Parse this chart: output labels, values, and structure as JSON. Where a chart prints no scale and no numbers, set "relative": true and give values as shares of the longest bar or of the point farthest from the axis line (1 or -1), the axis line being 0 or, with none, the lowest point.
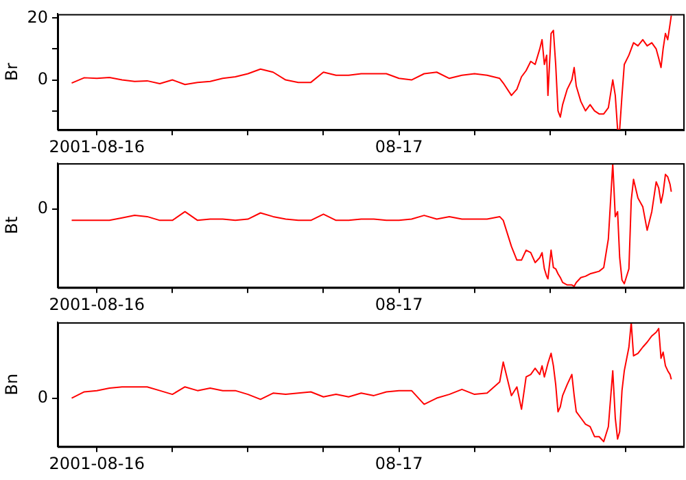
{
  "chart_data": [
    {
      "type": "line",
      "ylabel": "Br",
      "color": "#ff0000",
      "grid": false,
      "legend": false,
      "marker": "none",
      "xlim": [
        "2001-08-15T20:53",
        "2001-08-17T22:35"
      ],
      "xticks": [
        {
          "value": "2001-08-16",
          "label": "2001-08-16"
        },
        {
          "value": "2001-08-16T06:00",
          "label": null
        },
        {
          "value": "2001-08-16T12:00",
          "label": null
        },
        {
          "value": "2001-08-16T18:00",
          "label": null
        },
        {
          "value": "2001-08-17",
          "label": "08-17"
        },
        {
          "value": "2001-08-17T06:00",
          "label": null
        },
        {
          "value": "2001-08-17T12:00",
          "label": null
        },
        {
          "value": "2001-08-17T18:00",
          "label": null
        }
      ],
      "ylim": [
        -16.1,
        21.3
      ],
      "yticks": [
        {
          "value": -10,
          "label": null
        },
        0,
        {
          "value": 10,
          "label": null
        },
        20
      ],
      "x": [
        "2001-08-15T22:00",
        "2001-08-15T23:00",
        "2001-08-16T00:00",
        "2001-08-16T01:00",
        "2001-08-16T02:00",
        "2001-08-16T03:00",
        "2001-08-16T04:00",
        "2001-08-16T05:00",
        "2001-08-16T06:00",
        "2001-08-16T07:00",
        "2001-08-16T08:00",
        "2001-08-16T09:00",
        "2001-08-16T10:00",
        "2001-08-16T11:00",
        "2001-08-16T12:00",
        "2001-08-16T13:00",
        "2001-08-16T14:00",
        "2001-08-16T15:00",
        "2001-08-16T16:00",
        "2001-08-16T17:00",
        "2001-08-16T18:00",
        "2001-08-16T19:00",
        "2001-08-16T20:00",
        "2001-08-16T21:00",
        "2001-08-16T22:00",
        "2001-08-16T23:00",
        "2001-08-17T00:00",
        "2001-08-17T01:00",
        "2001-08-17T02:00",
        "2001-08-17T03:00",
        "2001-08-17T04:00",
        "2001-08-17T05:00",
        "2001-08-17T06:00",
        "2001-08-17T07:00",
        "2001-08-17T08:00",
        "2001-08-17T08:17",
        "2001-08-17T08:56",
        "2001-08-17T09:22",
        "2001-08-17T09:44",
        "2001-08-17T10:06",
        "2001-08-17T10:28",
        "2001-08-17T10:49",
        "2001-08-17T11:11",
        "2001-08-17T11:22",
        "2001-08-17T11:33",
        "2001-08-17T11:44",
        "2001-08-17T11:50",
        "2001-08-17T12:05",
        "2001-08-17T12:16",
        "2001-08-17T12:27",
        "2001-08-17T12:38",
        "2001-08-17T12:49",
        "2001-08-17T13:00",
        "2001-08-17T13:22",
        "2001-08-17T13:44",
        "2001-08-17T13:55",
        "2001-08-17T14:05",
        "2001-08-17T14:27",
        "2001-08-17T14:49",
        "2001-08-17T15:11",
        "2001-08-17T15:32",
        "2001-08-17T15:54",
        "2001-08-17T16:16",
        "2001-08-17T16:38",
        "2001-08-17T16:59",
        "2001-08-17T17:11",
        "2001-08-17T17:22",
        "2001-08-17T17:32",
        "2001-08-17T17:43",
        "2001-08-17T17:54",
        "2001-08-17T18:16",
        "2001-08-17T18:27",
        "2001-08-17T18:38",
        "2001-08-17T18:59",
        "2001-08-17T19:22",
        "2001-08-17T19:43",
        "2001-08-17T20:05",
        "2001-08-17T20:26",
        "2001-08-17T20:38",
        "2001-08-17T20:49",
        "2001-08-17T20:59",
        "2001-08-17T21:10",
        "2001-08-17T21:21",
        "2001-08-17T21:32",
        "2001-08-17T21:38"
      ],
      "values": [
        -1,
        0.7,
        0.5,
        0.8,
        0,
        -0.5,
        -0.3,
        -1.2,
        0,
        -1.5,
        -0.8,
        -0.5,
        0.5,
        1,
        2,
        3.5,
        2.5,
        0,
        -0.8,
        -0.8,
        2.5,
        1.5,
        1.5,
        2,
        2,
        2,
        0.5,
        0,
        2,
        2.5,
        0.5,
        1.5,
        2,
        1.5,
        0.5,
        -1,
        -5,
        -3,
        1,
        3,
        6,
        5,
        10,
        13,
        5,
        8,
        -5,
        15,
        16,
        5,
        -10,
        -12,
        -8,
        -3,
        0,
        4,
        -2,
        -7,
        -10,
        -8,
        -10,
        -11,
        -11,
        -9,
        0,
        -5,
        -16,
        -16,
        -5,
        5,
        8,
        10,
        12,
        11,
        13,
        11,
        12,
        10,
        7,
        4,
        10,
        15,
        13,
        18,
        20.8
      ]
    },
    {
      "type": "line",
      "ylabel": "Bt",
      "color": "#ff0000",
      "grid": false,
      "legend": false,
      "marker": "none",
      "relative": true,
      "xlim": [
        "2001-08-15T20:53",
        "2001-08-17T22:35"
      ],
      "xticks": [
        {
          "value": "2001-08-16",
          "label": "2001-08-16"
        },
        {
          "value": "2001-08-16T06:00",
          "label": null
        },
        {
          "value": "2001-08-16T12:00",
          "label": null
        },
        {
          "value": "2001-08-16T18:00",
          "label": null
        },
        {
          "value": "2001-08-17",
          "label": "08-17"
        },
        {
          "value": "2001-08-17T06:00",
          "label": null
        },
        {
          "value": "2001-08-17T12:00",
          "label": null
        },
        {
          "value": "2001-08-17T18:00",
          "label": null
        }
      ],
      "annotations": [
        "0"
      ],
      "x": [
        "2001-08-15T22:00",
        "2001-08-15T23:00",
        "2001-08-16T00:00",
        "2001-08-16T01:00",
        "2001-08-16T02:00",
        "2001-08-16T03:00",
        "2001-08-16T04:00",
        "2001-08-16T05:00",
        "2001-08-16T06:00",
        "2001-08-16T07:00",
        "2001-08-16T08:00",
        "2001-08-16T09:00",
        "2001-08-16T10:00",
        "2001-08-16T11:00",
        "2001-08-16T12:00",
        "2001-08-16T13:00",
        "2001-08-16T14:00",
        "2001-08-16T15:00",
        "2001-08-16T16:00",
        "2001-08-16T17:00",
        "2001-08-16T18:00",
        "2001-08-16T19:00",
        "2001-08-16T20:00",
        "2001-08-16T21:00",
        "2001-08-16T22:00",
        "2001-08-16T23:00",
        "2001-08-17T00:00",
        "2001-08-17T01:00",
        "2001-08-17T02:00",
        "2001-08-17T03:00",
        "2001-08-17T04:00",
        "2001-08-17T05:00",
        "2001-08-17T06:00",
        "2001-08-17T07:00",
        "2001-08-17T08:00",
        "2001-08-17T08:17",
        "2001-08-17T08:56",
        "2001-08-17T09:22",
        "2001-08-17T09:44",
        "2001-08-17T10:06",
        "2001-08-17T10:28",
        "2001-08-17T10:49",
        "2001-08-17T11:11",
        "2001-08-17T11:22",
        "2001-08-17T11:33",
        "2001-08-17T11:44",
        "2001-08-17T11:50",
        "2001-08-17T12:05",
        "2001-08-17T12:16",
        "2001-08-17T12:27",
        "2001-08-17T12:38",
        "2001-08-17T12:49",
        "2001-08-17T13:00",
        "2001-08-17T13:22",
        "2001-08-17T13:44",
        "2001-08-17T13:55",
        "2001-08-17T14:05",
        "2001-08-17T14:27",
        "2001-08-17T14:49",
        "2001-08-17T15:11",
        "2001-08-17T15:32",
        "2001-08-17T15:54",
        "2001-08-17T16:16",
        "2001-08-17T16:38",
        "2001-08-17T16:59",
        "2001-08-17T17:11",
        "2001-08-17T17:22",
        "2001-08-17T17:32",
        "2001-08-17T17:43",
        "2001-08-17T17:54",
        "2001-08-17T18:16",
        "2001-08-17T18:27",
        "2001-08-17T18:38",
        "2001-08-17T18:59",
        "2001-08-17T19:22",
        "2001-08-17T19:43",
        "2001-08-17T20:05",
        "2001-08-17T20:26",
        "2001-08-17T20:38",
        "2001-08-17T20:49",
        "2001-08-17T20:59",
        "2001-08-17T21:10",
        "2001-08-17T21:21",
        "2001-08-17T21:32",
        "2001-08-17T21:38"
      ],
      "values": [
        0.54,
        0.54,
        0.54,
        0.54,
        0.56,
        0.58,
        0.57,
        0.54,
        0.54,
        0.61,
        0.54,
        0.55,
        0.55,
        0.54,
        0.55,
        0.6,
        0.57,
        0.55,
        0.54,
        0.54,
        0.59,
        0.54,
        0.54,
        0.55,
        0.55,
        0.54,
        0.54,
        0.55,
        0.58,
        0.55,
        0.57,
        0.55,
        0.55,
        0.55,
        0.57,
        0.54,
        0.33,
        0.22,
        0.22,
        0.3,
        0.28,
        0.2,
        0.24,
        0.28,
        0.15,
        0.09,
        0.07,
        0.3,
        0.16,
        0.15,
        0.11,
        0.08,
        0.04,
        0.02,
        0.02,
        0.01,
        0.04,
        0.08,
        0.09,
        0.11,
        0.12,
        0.13,
        0.16,
        0.39,
        1,
        0.57,
        0.61,
        0.24,
        0.06,
        0.03,
        0.15,
        0.7,
        0.87,
        0.72,
        0.65,
        0.46,
        0.61,
        0.85,
        0.8,
        0.68,
        0.76,
        0.91,
        0.89,
        0.83,
        0.77
      ]
    },
    {
      "type": "line",
      "ylabel": "Bn",
      "color": "#ff0000",
      "grid": false,
      "legend": false,
      "marker": "none",
      "relative": true,
      "xlim": [
        "2001-08-15T20:53",
        "2001-08-17T22:35"
      ],
      "xticks": [
        {
          "value": "2001-08-16",
          "label": "2001-08-16"
        },
        {
          "value": "2001-08-16T06:00",
          "label": null
        },
        {
          "value": "2001-08-16T12:00",
          "label": null
        },
        {
          "value": "2001-08-16T18:00",
          "label": null
        },
        {
          "value": "2001-08-17",
          "label": "08-17"
        },
        {
          "value": "2001-08-17T06:00",
          "label": null
        },
        {
          "value": "2001-08-17T12:00",
          "label": null
        },
        {
          "value": "2001-08-17T18:00",
          "label": null
        }
      ],
      "annotations": [
        "0"
      ],
      "x": [
        "2001-08-15T22:00",
        "2001-08-15T23:00",
        "2001-08-16T00:00",
        "2001-08-16T01:00",
        "2001-08-16T02:00",
        "2001-08-16T03:00",
        "2001-08-16T04:00",
        "2001-08-16T05:00",
        "2001-08-16T06:00",
        "2001-08-16T07:00",
        "2001-08-16T08:00",
        "2001-08-16T09:00",
        "2001-08-16T10:00",
        "2001-08-16T11:00",
        "2001-08-16T12:00",
        "2001-08-16T13:00",
        "2001-08-16T14:00",
        "2001-08-16T15:00",
        "2001-08-16T16:00",
        "2001-08-16T17:00",
        "2001-08-16T18:00",
        "2001-08-16T19:00",
        "2001-08-16T20:00",
        "2001-08-16T21:00",
        "2001-08-16T22:00",
        "2001-08-16T23:00",
        "2001-08-17T00:00",
        "2001-08-17T01:00",
        "2001-08-17T02:00",
        "2001-08-17T03:00",
        "2001-08-17T04:00",
        "2001-08-17T05:00",
        "2001-08-17T06:00",
        "2001-08-17T07:00",
        "2001-08-17T08:00",
        "2001-08-17T08:17",
        "2001-08-17T08:56",
        "2001-08-17T09:22",
        "2001-08-17T09:44",
        "2001-08-17T10:06",
        "2001-08-17T10:28",
        "2001-08-17T10:49",
        "2001-08-17T11:11",
        "2001-08-17T11:22",
        "2001-08-17T11:33",
        "2001-08-17T11:44",
        "2001-08-17T11:50",
        "2001-08-17T12:05",
        "2001-08-17T12:16",
        "2001-08-17T12:27",
        "2001-08-17T12:38",
        "2001-08-17T12:49",
        "2001-08-17T13:00",
        "2001-08-17T13:22",
        "2001-08-17T13:44",
        "2001-08-17T13:55",
        "2001-08-17T14:05",
        "2001-08-17T14:27",
        "2001-08-17T14:49",
        "2001-08-17T15:11",
        "2001-08-17T15:32",
        "2001-08-17T15:54",
        "2001-08-17T16:16",
        "2001-08-17T16:38",
        "2001-08-17T16:59",
        "2001-08-17T17:11",
        "2001-08-17T17:22",
        "2001-08-17T17:32",
        "2001-08-17T17:43",
        "2001-08-17T17:54",
        "2001-08-17T18:16",
        "2001-08-17T18:27",
        "2001-08-17T18:38",
        "2001-08-17T18:59",
        "2001-08-17T19:22",
        "2001-08-17T19:43",
        "2001-08-17T20:05",
        "2001-08-17T20:26",
        "2001-08-17T20:38",
        "2001-08-17T20:49",
        "2001-08-17T20:59",
        "2001-08-17T21:10",
        "2001-08-17T21:21",
        "2001-08-17T21:32",
        "2001-08-17T21:38"
      ],
      "values": [
        0.39,
        0.44,
        0.45,
        0.47,
        0.48,
        0.48,
        0.48,
        0.45,
        0.42,
        0.48,
        0.45,
        0.47,
        0.45,
        0.45,
        0.42,
        0.38,
        0.43,
        0.42,
        0.43,
        0.44,
        0.4,
        0.42,
        0.4,
        0.43,
        0.41,
        0.44,
        0.45,
        0.45,
        0.34,
        0.39,
        0.42,
        0.46,
        0.42,
        0.43,
        0.52,
        0.68,
        0.41,
        0.48,
        0.3,
        0.56,
        0.58,
        0.63,
        0.58,
        0.65,
        0.56,
        0.63,
        0.67,
        0.75,
        0.65,
        0.5,
        0.28,
        0.32,
        0.41,
        0.5,
        0.58,
        0.41,
        0.28,
        0.23,
        0.18,
        0.16,
        0.08,
        0.08,
        0.04,
        0.16,
        0.61,
        0.23,
        0.06,
        0.12,
        0.45,
        0.61,
        0.8,
        1,
        0.73,
        0.75,
        0.8,
        0.84,
        0.89,
        0.92,
        0.95,
        0.71,
        0.76,
        0.65,
        0.61,
        0.58,
        0.54
      ]
    }
  ]
}
